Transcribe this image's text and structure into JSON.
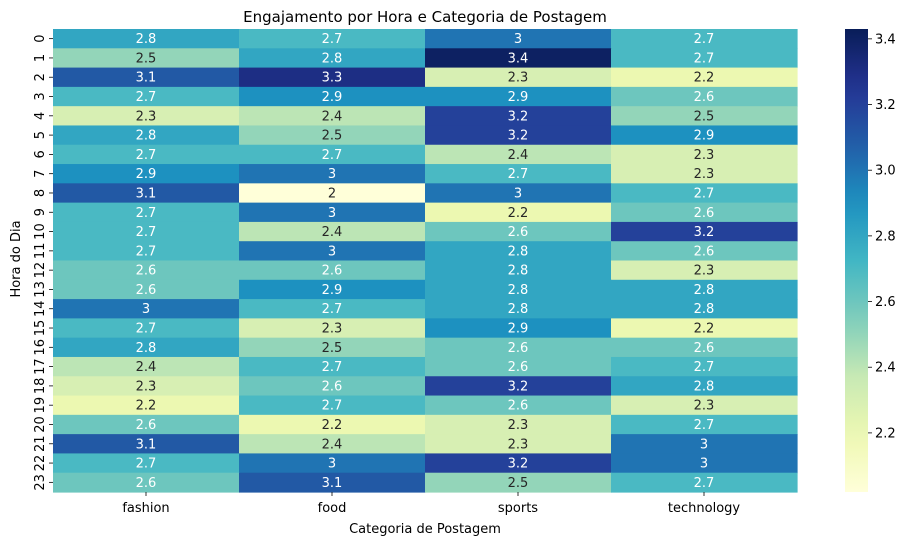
{
  "chart_data": {
    "type": "heatmap",
    "title": "Engajamento por Hora e Categoria de Postagem",
    "xlabel": "Categoria de Postagem",
    "ylabel": "Hora do Dia",
    "categories": [
      "fashion",
      "food",
      "sports",
      "technology"
    ],
    "rows": [
      "0",
      "1",
      "2",
      "3",
      "4",
      "5",
      "6",
      "7",
      "8",
      "9",
      "10",
      "11",
      "12",
      "13",
      "14",
      "15",
      "16",
      "17",
      "18",
      "19",
      "20",
      "21",
      "22",
      "23"
    ],
    "values": [
      [
        2.8,
        2.7,
        3.0,
        2.7
      ],
      [
        2.5,
        2.8,
        3.4,
        2.7
      ],
      [
        3.1,
        3.3,
        2.3,
        2.2
      ],
      [
        2.7,
        2.9,
        2.9,
        2.6
      ],
      [
        2.3,
        2.4,
        3.2,
        2.5
      ],
      [
        2.8,
        2.5,
        3.2,
        2.9
      ],
      [
        2.7,
        2.7,
        2.4,
        2.3
      ],
      [
        2.9,
        3.0,
        2.7,
        2.3
      ],
      [
        3.1,
        2.0,
        3.0,
        2.7
      ],
      [
        2.7,
        3.0,
        2.2,
        2.6
      ],
      [
        2.7,
        2.4,
        2.6,
        3.2
      ],
      [
        2.7,
        3.0,
        2.8,
        2.6
      ],
      [
        2.6,
        2.6,
        2.8,
        2.3
      ],
      [
        2.6,
        2.9,
        2.8,
        2.8
      ],
      [
        3.0,
        2.7,
        2.8,
        2.8
      ],
      [
        2.7,
        2.3,
        2.9,
        2.2
      ],
      [
        2.8,
        2.5,
        2.6,
        2.6
      ],
      [
        2.4,
        2.7,
        2.6,
        2.7
      ],
      [
        2.3,
        2.6,
        3.2,
        2.8
      ],
      [
        2.2,
        2.7,
        2.6,
        2.3
      ],
      [
        2.6,
        2.2,
        2.3,
        2.7
      ],
      [
        3.1,
        2.4,
        2.3,
        3.0
      ],
      [
        2.7,
        3.0,
        3.2,
        3.0
      ],
      [
        2.6,
        3.1,
        2.5,
        2.7
      ]
    ],
    "colorbar": {
      "colormap": "YlGnBu",
      "range": [
        2.02,
        3.43
      ],
      "ticks": [
        2.2,
        2.4,
        2.6,
        2.8,
        3.0,
        3.2,
        3.4
      ],
      "tick_labels": [
        "2.2",
        "2.4",
        "2.6",
        "2.8",
        "3.0",
        "3.2",
        "3.4"
      ]
    },
    "grid": false,
    "legend": "colorbar-right"
  }
}
